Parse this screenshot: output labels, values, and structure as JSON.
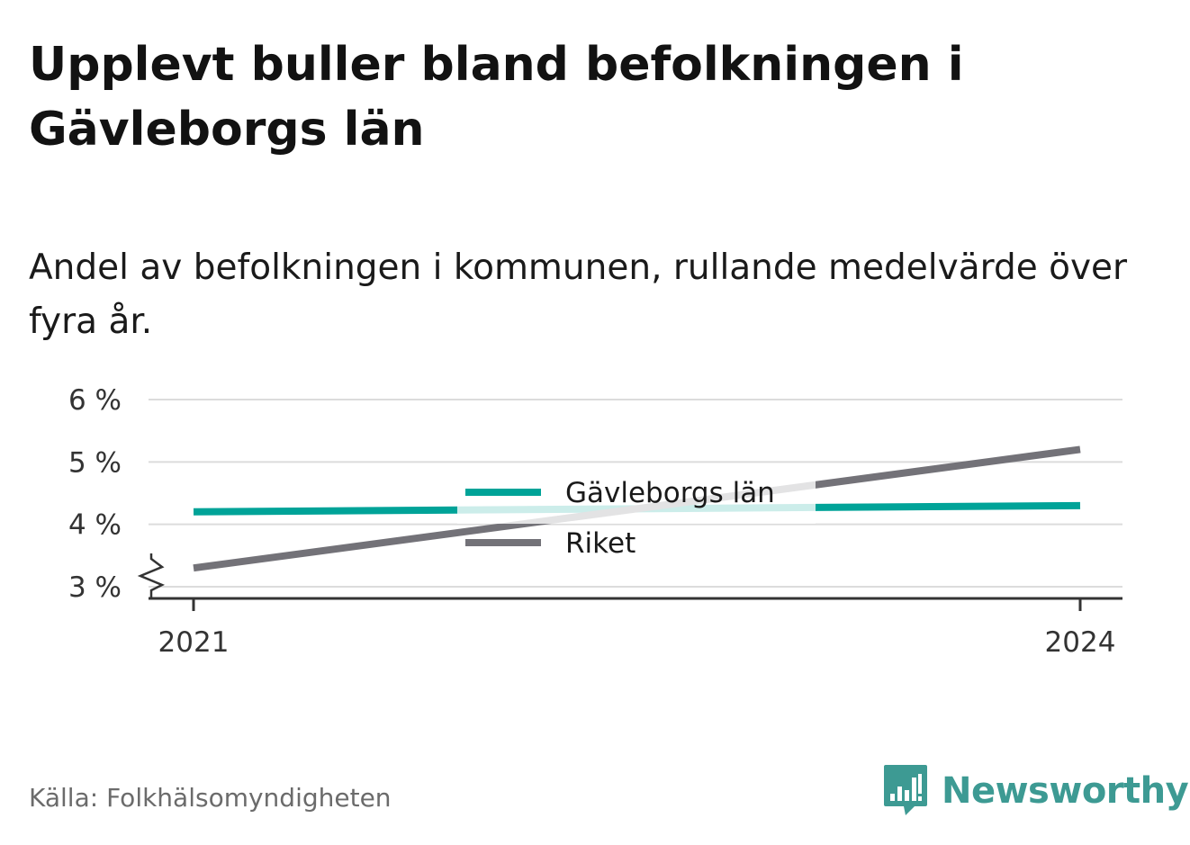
{
  "title": "Upplevt buller bland befolkningen i Gävleborgs län",
  "subtitle": "Andel av befolkningen i kommunen, rullande medelvärde över fyra år.",
  "source": "Källa: Folkhälsomyndigheten",
  "brand": {
    "name": "Newsworthy",
    "icon": "newsworthy-logo-icon",
    "color": "#3d9a93"
  },
  "chart_data": {
    "type": "line",
    "x": [
      2021,
      2024
    ],
    "x_tick_labels": [
      "2021",
      "2024"
    ],
    "y_ticks": [
      3,
      4,
      5,
      6
    ],
    "y_tick_labels": [
      "3 %",
      "4 %",
      "5 %",
      "6 %"
    ],
    "ylim": [
      3,
      6
    ],
    "y_axis_break": true,
    "grid": true,
    "legend_position": "center",
    "series": [
      {
        "name": "Gävleborgs län",
        "color": "#00a398",
        "values": [
          4.2,
          4.3
        ]
      },
      {
        "name": "Riket",
        "color": "#737278",
        "values": [
          3.3,
          5.2
        ]
      }
    ]
  }
}
